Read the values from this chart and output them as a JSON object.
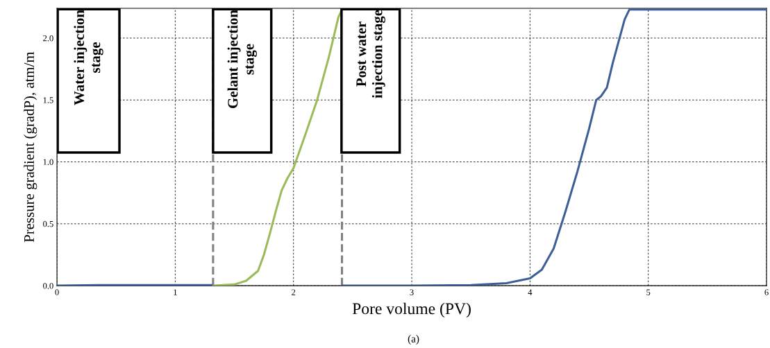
{
  "chart_data": {
    "type": "line",
    "xlabel": "Pore volume (PV)",
    "ylabel": "Pressure gradient (gradP), atm/m",
    "xlim": [
      0,
      6
    ],
    "ylim": [
      0,
      2.24
    ],
    "xticks": [
      0,
      1,
      2,
      3,
      4,
      5,
      6
    ],
    "yticks": [
      {
        "value": 0,
        "label": "0.0"
      },
      {
        "value": 0.5,
        "label": "0.5"
      },
      {
        "value": 1.0,
        "label": "1.0"
      },
      {
        "value": 1.5,
        "label": "1.5"
      },
      {
        "value": 2.0,
        "label": "2.0"
      }
    ],
    "grid": true,
    "line_style": "solid",
    "marker": "none",
    "series": [
      {
        "color": "#3e5f96",
        "x": [
          0,
          0.35,
          1.32,
          null,
          2.41,
          3.0,
          3.5,
          3.8,
          4.0,
          4.1,
          4.2,
          4.3,
          4.4,
          4.5,
          4.56,
          4.6,
          4.65,
          4.7,
          4.8,
          4.84,
          6.0
        ],
        "values": [
          0,
          0.005,
          0.005,
          null,
          0,
          0,
          0.005,
          0.02,
          0.06,
          0.13,
          0.3,
          0.6,
          0.92,
          1.27,
          1.5,
          1.53,
          1.6,
          1.8,
          2.15,
          2.23,
          2.23
        ]
      },
      {
        "color": "#9bbb59",
        "x": [
          1.32,
          1.5,
          1.6,
          1.7,
          1.75,
          1.8,
          1.85,
          1.9,
          1.95,
          2.0,
          2.1,
          2.2,
          2.3,
          2.38,
          2.41
        ],
        "values": [
          0,
          0.01,
          0.04,
          0.12,
          0.25,
          0.42,
          0.6,
          0.77,
          0.87,
          0.95,
          1.22,
          1.5,
          1.85,
          2.17,
          2.23
        ]
      }
    ],
    "ref_lines": [
      {
        "axis": "x",
        "value": 1.32,
        "color": "#808080",
        "line_style": "dashed"
      },
      {
        "axis": "x",
        "value": 2.41,
        "color": "#808080",
        "line_style": "dashed"
      }
    ],
    "annotations": [
      "Water injection\nstage",
      "Gelant injection\nstage",
      "Post water\ninjection stage",
      "(a)"
    ]
  }
}
